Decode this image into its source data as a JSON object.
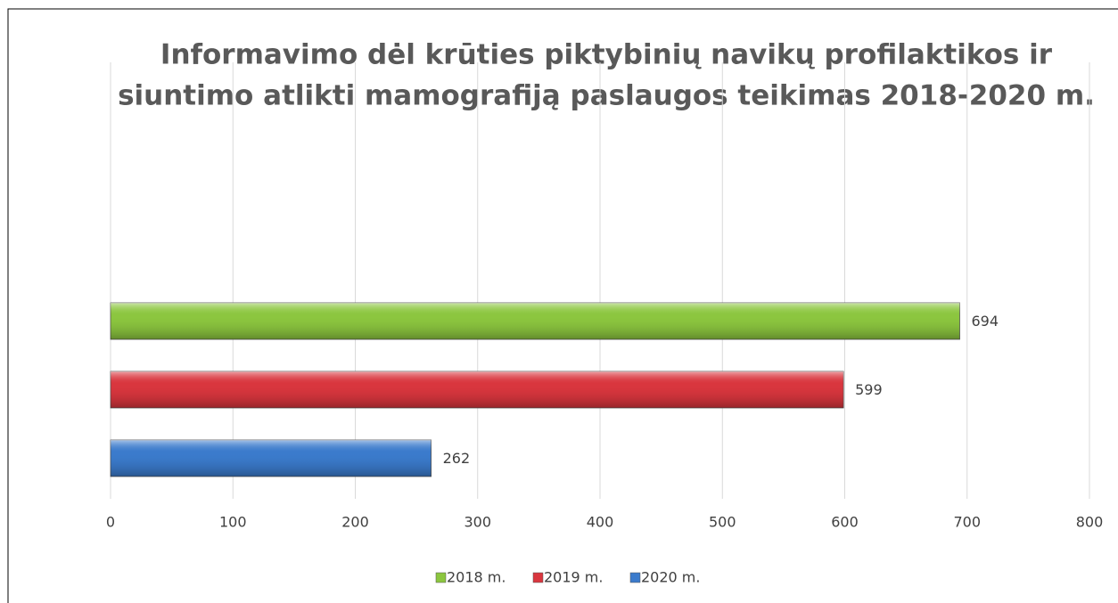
{
  "chart_data": {
    "type": "bar",
    "orientation": "horizontal",
    "title": [
      "Informavimo dėl krūties piktybinių navikų profilaktikos ir",
      "siuntimo atlikti mamografiją paslaugos teikimas 2018-2020 m."
    ],
    "categories": [
      null
    ],
    "series": [
      {
        "name": "2018 m.",
        "color": "#8cc63f",
        "values": [
          694
        ]
      },
      {
        "name": "2019 m.",
        "color": "#d9363e",
        "values": [
          599
        ]
      },
      {
        "name": "2020 m.",
        "color": "#3b7bcc",
        "values": [
          262
        ]
      }
    ],
    "xlim": [
      0,
      800
    ],
    "xticks": [
      0,
      100,
      200,
      300,
      400,
      500,
      600,
      700,
      800
    ],
    "grid": true,
    "legend": "bottom"
  }
}
